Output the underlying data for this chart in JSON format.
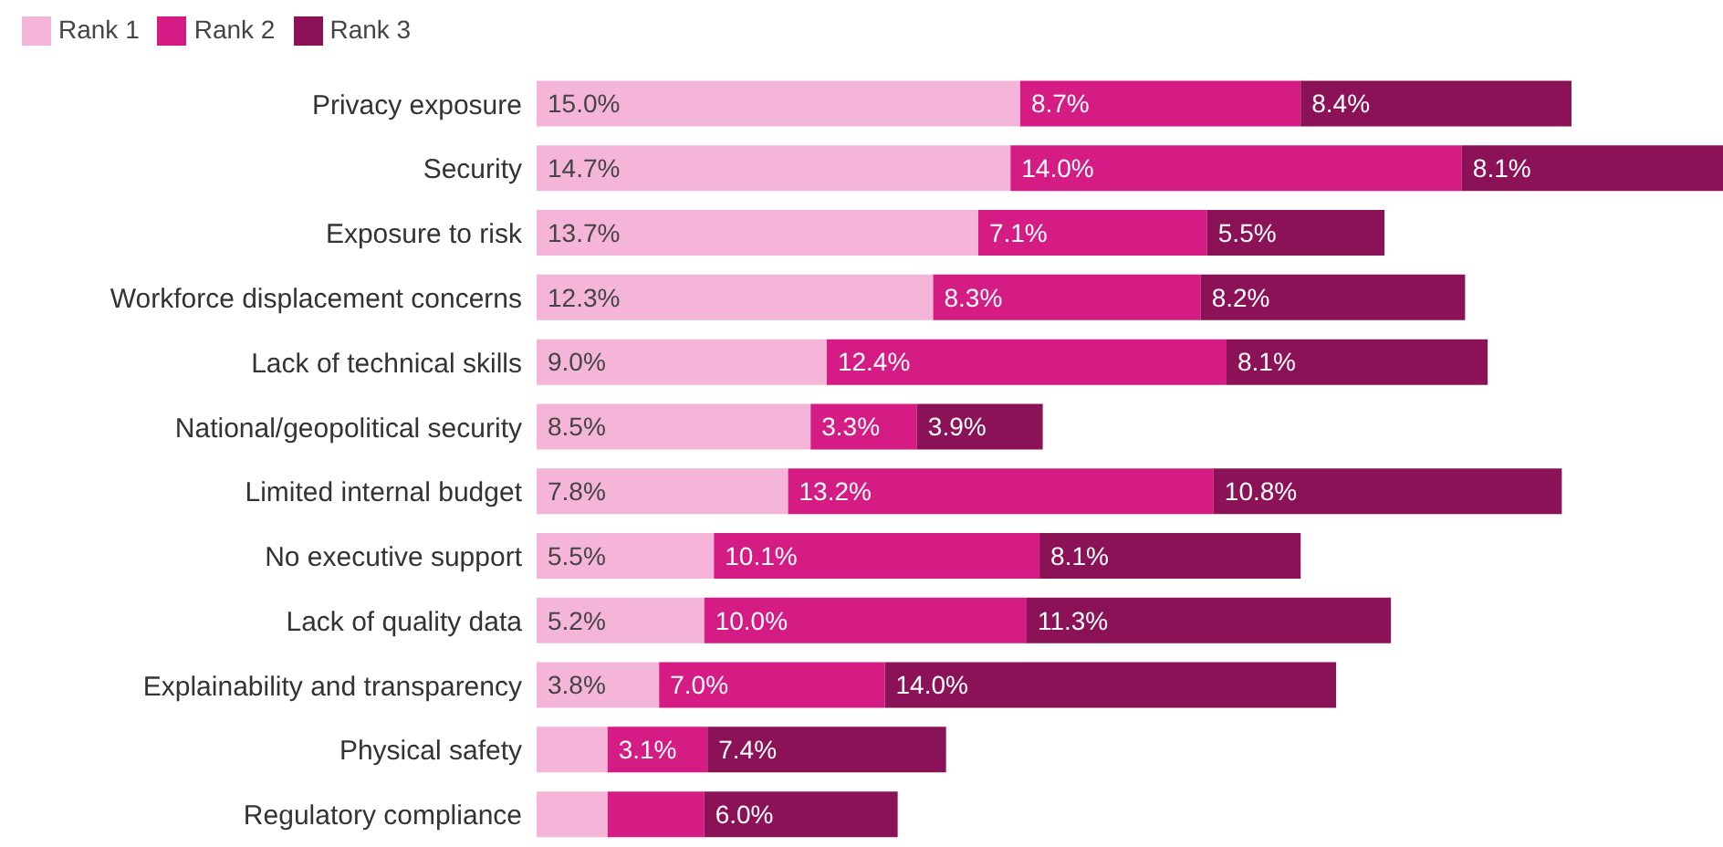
{
  "chart_data": {
    "type": "bar",
    "orientation": "horizontal",
    "stacked": true,
    "legend": "top left",
    "categories": [
      "Privacy exposure",
      "Security",
      "Exposure to risk",
      "Workforce displacement concerns",
      "Lack of technical skills",
      "National/geopolitical security",
      "Limited internal budget",
      "No executive support",
      "Lack of quality data",
      "Explainability and transparency",
      "Physical safety",
      "Regulatory compliance"
    ],
    "series": [
      {
        "name": "Rank 1",
        "color": "#f4b5d9",
        "values": [
          15.0,
          14.7,
          13.7,
          12.3,
          9.0,
          8.5,
          7.8,
          5.5,
          5.2,
          3.8,
          2.2,
          2.2
        ],
        "value_labels": [
          "15.0%",
          "14.7%",
          "13.7%",
          "12.3%",
          "9.0%",
          "8.5%",
          "7.8%",
          "5.5%",
          "5.2%",
          "3.8%",
          null,
          null
        ]
      },
      {
        "name": "Rank 2",
        "color": "#d41c84",
        "values": [
          8.7,
          14.0,
          7.1,
          8.3,
          12.4,
          3.3,
          13.2,
          10.1,
          10.0,
          7.0,
          3.1,
          3.0
        ],
        "value_labels": [
          "8.7%",
          "14.0%",
          "7.1%",
          "8.3%",
          "12.4%",
          "3.3%",
          "13.2%",
          "10.1%",
          "10.0%",
          "7.0%",
          "3.1%",
          null
        ]
      },
      {
        "name": "Rank 3",
        "color": "#8c1257",
        "values": [
          8.4,
          8.1,
          5.5,
          8.2,
          8.1,
          3.9,
          10.8,
          8.1,
          11.3,
          14.0,
          7.4,
          6.0
        ],
        "value_labels": [
          "8.4%",
          "8.1%",
          "5.5%",
          "8.2%",
          "8.1%",
          "3.9%",
          "10.8%",
          "8.1%",
          "11.3%",
          "14.0%",
          "7.4%",
          "6.0%"
        ]
      }
    ]
  }
}
